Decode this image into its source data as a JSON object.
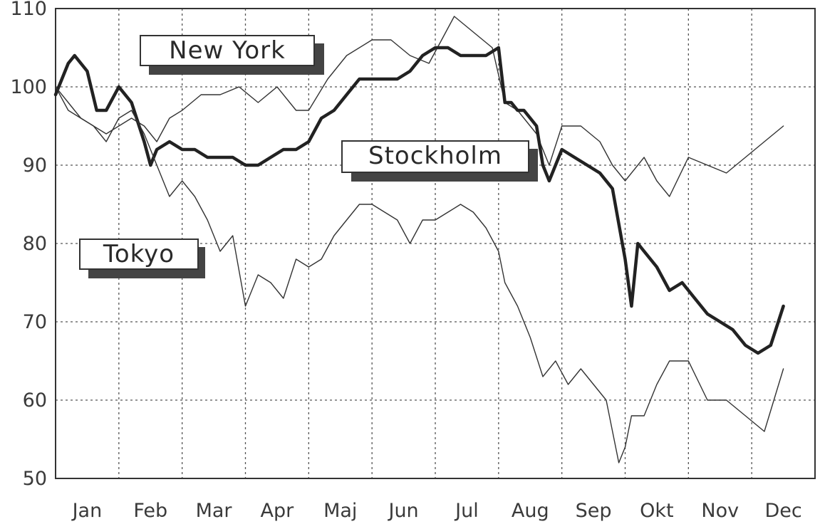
{
  "chart_data": {
    "type": "line",
    "title": "",
    "xlabel": "",
    "ylabel": "",
    "ylim": [
      50,
      110
    ],
    "yticks": [
      50,
      60,
      70,
      80,
      90,
      100,
      110
    ],
    "xlim": [
      0,
      12
    ],
    "categories": [
      "Jan",
      "Feb",
      "Mar",
      "Apr",
      "Maj",
      "Jun",
      "Jul",
      "Aug",
      "Sep",
      "Okt",
      "Nov",
      "Dec"
    ],
    "grid": true,
    "legend": "inline labels",
    "series": [
      {
        "name": "New York",
        "color": "#333333",
        "width": "thin",
        "x": [
          0,
          0.2,
          0.4,
          0.6,
          0.8,
          1.0,
          1.2,
          1.4,
          1.6,
          1.8,
          2.0,
          2.3,
          2.6,
          2.9,
          3.2,
          3.5,
          3.8,
          4.0,
          4.3,
          4.6,
          5.0,
          5.3,
          5.6,
          5.9,
          6.1,
          6.3,
          6.6,
          6.9,
          7.1,
          7.3,
          7.6,
          7.8,
          8.0,
          8.3,
          8.6,
          8.8,
          9.0,
          9.3,
          9.5,
          9.7,
          10.0,
          10.3,
          10.6,
          10.9,
          11.2,
          11.5
        ],
        "y": [
          100,
          97,
          96,
          95,
          94,
          95,
          96,
          95,
          93,
          96,
          97,
          99,
          99,
          100,
          98,
          100,
          97,
          97,
          101,
          104,
          106,
          106,
          104,
          103,
          106,
          109,
          107,
          105,
          98,
          97,
          94,
          90,
          95,
          95,
          93,
          90,
          88,
          91,
          88,
          86,
          91,
          90,
          89,
          91,
          93,
          95
        ]
      },
      {
        "name": "Stockholm",
        "color": "#222222",
        "width": "thick",
        "x": [
          0,
          0.1,
          0.2,
          0.3,
          0.5,
          0.65,
          0.8,
          1.0,
          1.2,
          1.4,
          1.5,
          1.6,
          1.8,
          2.0,
          2.2,
          2.4,
          2.6,
          2.8,
          3.0,
          3.2,
          3.4,
          3.6,
          3.8,
          4.0,
          4.2,
          4.4,
          4.6,
          4.8,
          5.0,
          5.2,
          5.4,
          5.6,
          5.8,
          6.0,
          6.2,
          6.4,
          6.6,
          6.8,
          7.0,
          7.1,
          7.2,
          7.3,
          7.4,
          7.5,
          7.6,
          7.7,
          7.8,
          7.9,
          8.0,
          8.2,
          8.4,
          8.6,
          8.8,
          9.0,
          9.1,
          9.2,
          9.3,
          9.5,
          9.7,
          9.9,
          10.1,
          10.3,
          10.5,
          10.7,
          10.9,
          11.1,
          11.3,
          11.5
        ],
        "y": [
          99,
          101,
          103,
          104,
          102,
          97,
          97,
          100,
          98,
          93,
          90,
          92,
          93,
          92,
          92,
          91,
          91,
          91,
          90,
          90,
          91,
          92,
          92,
          93,
          96,
          97,
          99,
          101,
          101,
          101,
          101,
          102,
          104,
          105,
          105,
          104,
          104,
          104,
          105,
          98,
          98,
          97,
          97,
          96,
          95,
          90,
          88,
          90,
          92,
          91,
          90,
          89,
          87,
          78,
          72,
          80,
          79,
          77,
          74,
          75,
          73,
          71,
          70,
          69,
          67,
          66,
          67,
          72
        ]
      },
      {
        "name": "Tokyo",
        "color": "#333333",
        "width": "thin",
        "x": [
          0,
          0.2,
          0.4,
          0.6,
          0.8,
          1.0,
          1.2,
          1.4,
          1.6,
          1.8,
          2.0,
          2.2,
          2.4,
          2.6,
          2.8,
          3.0,
          3.2,
          3.4,
          3.6,
          3.8,
          4.0,
          4.2,
          4.4,
          4.6,
          4.8,
          5.0,
          5.2,
          5.4,
          5.6,
          5.8,
          6.0,
          6.2,
          6.4,
          6.6,
          6.8,
          7.0,
          7.1,
          7.3,
          7.5,
          7.7,
          7.9,
          8.1,
          8.3,
          8.5,
          8.7,
          8.9,
          9.0,
          9.1,
          9.3,
          9.5,
          9.7,
          10.0,
          10.3,
          10.6,
          10.9,
          11.2,
          11.5
        ],
        "y": [
          100,
          98,
          96,
          95,
          93,
          96,
          97,
          94,
          90,
          86,
          88,
          86,
          83,
          79,
          81,
          72,
          76,
          75,
          73,
          78,
          77,
          78,
          81,
          83,
          85,
          85,
          84,
          83,
          80,
          83,
          83,
          84,
          85,
          84,
          82,
          79,
          75,
          72,
          68,
          63,
          65,
          62,
          64,
          62,
          60,
          52,
          54,
          58,
          58,
          62,
          65,
          65,
          60,
          60,
          58,
          56,
          64
        ]
      }
    ]
  },
  "labels": {
    "new_york": "New York",
    "stockholm": "Stockholm",
    "tokyo": "Tokyo"
  }
}
